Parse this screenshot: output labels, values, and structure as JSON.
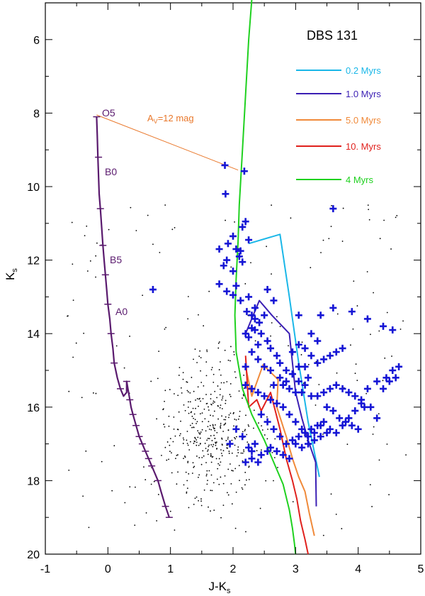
{
  "chart_data": {
    "type": "scatter",
    "title": "DBS 131",
    "xlabel": "J-K",
    "xlabel_sub": "s",
    "ylabel": "K",
    "ylabel_sub": "s",
    "xlim": [
      -1,
      5
    ],
    "ylim": [
      20,
      5
    ],
    "y_inverted": true,
    "grid": false,
    "legend_position": "top-right",
    "x_ticks": [
      "-1",
      "0",
      "1",
      "2",
      "3",
      "4",
      "5"
    ],
    "y_ticks": [
      "6",
      "8",
      "10",
      "12",
      "14",
      "16",
      "18",
      "20"
    ],
    "colors": {
      "main_sequence": "#5a1a6e",
      "reddening_vector": "#e9772a",
      "stars": "#1515d5",
      "field": "#000000",
      "iso_0_2": "#1ab7e8",
      "iso_1_0": "#3b1fb4",
      "iso_5_0": "#f08a3a",
      "iso_10": "#e0211d",
      "iso_4": "#1fd11f"
    },
    "legend": [
      {
        "label": "0.2 Myrs",
        "color": "#1ab7e8"
      },
      {
        "label": "1.0 Myrs",
        "color": "#3b1fb4"
      },
      {
        "label": "5.0 Myrs",
        "color": "#f08a3a"
      },
      {
        "label": "10. Myrs",
        "color": "#e0211d"
      },
      {
        "label": "4 Myrs",
        "color": "#1fd11f"
      }
    ],
    "annotations": {
      "o5": "O5",
      "b0": "B0",
      "b5": "B5",
      "a0": "A0",
      "av_prefix": "A",
      "av_sub": "V",
      "av_suffix": "=12 mag"
    },
    "main_sequence": {
      "x": [
        -0.18,
        -0.17,
        -0.16,
        -0.15,
        -0.14,
        -0.12,
        -0.1,
        -0.08,
        -0.06,
        -0.04,
        -0.02,
        0.0,
        0.03,
        0.05,
        0.08,
        0.1,
        0.15,
        0.2,
        0.25,
        0.3,
        0.3,
        0.32,
        0.35,
        0.37,
        0.4,
        0.45,
        0.5,
        0.55,
        0.6,
        0.65,
        0.7,
        0.75,
        0.8,
        0.85,
        0.92,
        0.98
      ],
      "y": [
        8.1,
        8.6,
        9.2,
        9.7,
        10.2,
        10.6,
        11.1,
        11.6,
        12.0,
        12.4,
        12.8,
        13.2,
        13.6,
        14.0,
        14.4,
        14.8,
        15.2,
        15.5,
        15.7,
        15.6,
        15.3,
        15.5,
        15.8,
        16.0,
        16.2,
        16.5,
        16.8,
        17.0,
        17.2,
        17.4,
        17.6,
        17.8,
        18.0,
        18.3,
        18.7,
        19.0
      ]
    },
    "main_sequence_ticks": {
      "x": [
        -0.18,
        -0.15,
        -0.12,
        -0.08,
        -0.04,
        0.0,
        0.05,
        0.1,
        0.2,
        0.3,
        0.35,
        0.4,
        0.45,
        0.5,
        0.55,
        0.6,
        0.65,
        0.7,
        0.8,
        0.92,
        0.98
      ],
      "y": [
        8.1,
        9.2,
        10.6,
        11.6,
        12.4,
        13.2,
        14.0,
        14.8,
        15.5,
        15.3,
        15.8,
        16.2,
        16.5,
        16.8,
        17.0,
        17.2,
        17.4,
        17.6,
        18.0,
        18.7,
        19.0
      ]
    },
    "reddening_vector": {
      "x": [
        -0.18,
        2.08
      ],
      "y": [
        8.05,
        9.55
      ]
    },
    "isochrones": [
      {
        "name": "0.2 Myrs",
        "color": "#1ab7e8",
        "x": [
          2.25,
          2.75,
          2.9,
          3.05,
          3.2,
          3.38
        ],
        "y": [
          11.55,
          11.3,
          13.0,
          14.8,
          16.4,
          17.9
        ]
      },
      {
        "name": "1.0 Myrs",
        "color": "#3b1fb4",
        "x": [
          2.2,
          2.42,
          2.62,
          2.9,
          2.95,
          3.0,
          3.1,
          3.2,
          3.32,
          3.33
        ],
        "y": [
          14.0,
          13.1,
          13.5,
          14.0,
          14.8,
          15.6,
          16.3,
          16.9,
          17.5,
          18.7
        ]
      },
      {
        "name": "5.0 Myrs",
        "color": "#f08a3a",
        "x": [
          2.2,
          2.3,
          2.48,
          2.72,
          2.7,
          2.85,
          2.95,
          3.05,
          3.15,
          3.22,
          3.3
        ],
        "y": [
          14.9,
          15.7,
          14.85,
          15.25,
          16.0,
          16.8,
          17.4,
          17.9,
          18.3,
          18.9,
          19.5
        ]
      },
      {
        "name": "10. Myrs",
        "color": "#e0211d",
        "x": [
          2.2,
          2.25,
          2.38,
          2.45,
          2.6,
          2.75,
          2.85,
          2.95,
          3.02,
          3.08,
          3.15,
          3.2
        ],
        "y": [
          14.6,
          16.0,
          15.8,
          16.1,
          15.6,
          16.6,
          17.4,
          18.0,
          18.5,
          19.1,
          19.6,
          20.0
        ]
      },
      {
        "name": "4 Myrs",
        "color": "#1fd11f",
        "x": [
          2.3,
          2.25,
          2.2,
          2.15,
          2.1,
          2.08,
          2.05,
          2.03,
          2.05,
          2.15,
          2.3,
          2.5,
          2.65,
          2.8,
          2.9,
          2.95,
          2.98,
          3.0
        ],
        "y": [
          4.9,
          6.0,
          7.5,
          9.0,
          10.5,
          11.5,
          12.5,
          13.5,
          14.5,
          15.5,
          16.2,
          16.9,
          17.5,
          18.1,
          18.8,
          19.3,
          19.7,
          20.0
        ]
      }
    ],
    "cluster_stars": {
      "x": [
        1.87,
        2.18,
        1.88,
        2.2,
        2.15,
        2.0,
        2.25,
        1.92,
        2.05,
        2.12,
        1.78,
        2.1,
        1.9,
        2.15,
        2.0,
        1.85,
        2.05,
        1.78,
        1.9,
        2.0,
        2.12,
        2.22,
        2.3,
        3.6,
        0.72,
        2.35,
        2.42,
        2.5,
        2.3,
        2.2,
        2.25,
        2.35,
        2.45,
        2.55,
        2.4,
        2.6,
        2.7,
        2.3,
        2.4,
        2.2,
        2.5,
        2.6,
        2.75,
        2.85,
        2.95,
        3.05,
        3.15,
        3.2,
        2.8,
        2.9,
        3.0,
        3.1,
        3.25,
        3.35,
        3.45,
        3.55,
        3.65,
        3.75,
        3.85,
        3.95,
        4.05,
        4.15,
        4.3,
        4.45,
        4.55,
        4.65,
        4.4,
        4.5,
        4.6,
        3.5,
        3.6,
        3.7,
        3.8,
        3.9,
        4.0,
        4.1,
        3.4,
        3.3,
        3.2,
        3.1,
        3.0,
        2.9,
        2.8,
        2.7,
        2.6,
        2.5,
        2.4,
        2.3,
        2.2,
        2.45,
        2.55,
        2.65,
        2.75,
        2.85,
        2.95,
        3.05,
        3.15,
        3.25,
        3.35,
        3.45,
        3.55,
        3.65,
        3.75,
        3.85,
        3.95,
        4.05,
        4.2,
        4.3,
        3.2,
        3.3,
        3.4,
        3.5,
        2.6,
        2.7,
        2.8,
        2.9,
        3.0,
        3.1,
        2.35,
        2.45,
        2.55,
        2.3,
        2.4,
        2.2,
        2.25,
        2.3,
        2.15,
        2.05,
        1.95,
        3.05,
        3.4,
        3.6,
        3.9,
        4.15,
        4.4,
        4.55,
        2.55,
        2.65,
        2.35,
        2.25,
        3.35,
        3.25,
        3.15,
        3.05,
        2.95,
        3.15,
        3.25,
        3.35,
        3.45,
        3.55,
        3.65,
        3.75,
        2.85,
        2.95,
        3.05,
        2.75,
        2.65
      ],
      "y": [
        9.42,
        9.58,
        10.2,
        10.95,
        11.1,
        11.35,
        11.45,
        11.55,
        11.7,
        11.75,
        11.7,
        11.9,
        12.0,
        12.05,
        12.3,
        12.15,
        12.7,
        12.65,
        12.85,
        12.95,
        13.1,
        13.4,
        13.5,
        10.6,
        12.8,
        13.6,
        13.7,
        13.5,
        13.85,
        14.0,
        14.1,
        13.9,
        14.0,
        14.2,
        14.3,
        14.4,
        14.6,
        14.5,
        14.7,
        14.9,
        14.9,
        15.0,
        14.8,
        15.0,
        15.1,
        15.3,
        15.4,
        15.2,
        15.4,
        15.5,
        15.6,
        15.6,
        15.7,
        15.7,
        15.6,
        15.5,
        15.4,
        15.5,
        15.6,
        15.7,
        15.8,
        15.5,
        15.3,
        15.2,
        15.0,
        14.9,
        15.5,
        15.3,
        15.2,
        16.0,
        16.1,
        16.3,
        16.4,
        16.5,
        16.6,
        16.0,
        16.5,
        16.7,
        16.8,
        16.6,
        16.4,
        16.2,
        16.0,
        15.9,
        15.8,
        15.7,
        15.6,
        15.5,
        15.4,
        16.2,
        16.4,
        16.6,
        16.8,
        17.0,
        16.9,
        16.8,
        16.7,
        16.6,
        16.5,
        16.4,
        16.6,
        16.7,
        16.5,
        16.3,
        16.1,
        15.9,
        16.0,
        16.3,
        17.0,
        16.9,
        16.8,
        16.7,
        17.1,
        17.2,
        17.3,
        17.4,
        17.0,
        17.1,
        17.0,
        17.3,
        17.2,
        17.4,
        17.5,
        17.5,
        17.1,
        17.2,
        16.8,
        16.6,
        17.0,
        13.5,
        13.5,
        13.3,
        13.4,
        13.6,
        13.8,
        13.9,
        12.8,
        13.1,
        13.3,
        13.0,
        14.2,
        14.0,
        14.4,
        14.3,
        14.5,
        14.9,
        14.6,
        14.8,
        14.7,
        14.6,
        14.5,
        14.4,
        15.3,
        15.1,
        14.9,
        15.2,
        15.4
      ]
    },
    "field_stars_note": "small black points"
  }
}
